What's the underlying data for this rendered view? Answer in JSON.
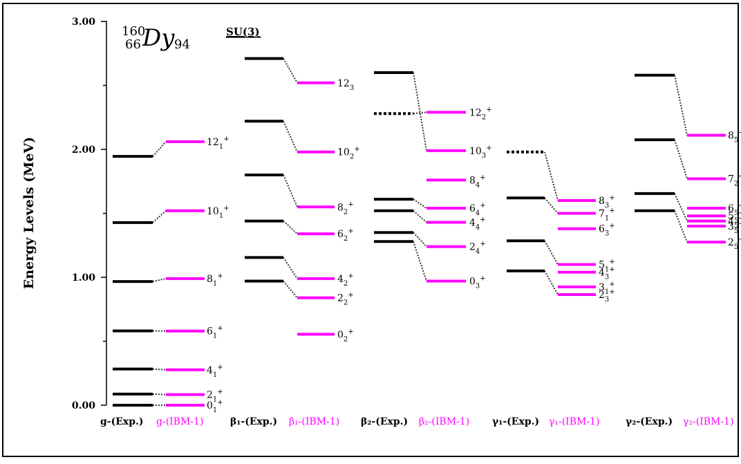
{
  "chart_data": {
    "type": "level-scheme",
    "nucleus": {
      "mass": "160",
      "z": "66",
      "symbol": "Dy",
      "n": "94"
    },
    "model_label": "SU(3)",
    "ylabel": "Energy Levels (MeV)",
    "ylim": [
      0,
      3.0
    ],
    "y_ticks": [
      {
        "value": 0,
        "label": "0.00"
      },
      {
        "value": 1,
        "label": "1.00"
      },
      {
        "value": 2,
        "label": "2.00"
      },
      {
        "value": 3,
        "label": "3.00"
      }
    ],
    "y_minor_ticks": [
      0.5,
      1.5,
      2.5
    ],
    "colors": {
      "exp": "#000000",
      "ibm": "#ff00ff",
      "connector": "#333333"
    },
    "bands": [
      {
        "exp_label": "g-(Exp.)",
        "ibm_label": "g-(IBM-1)",
        "exp": [
          0.0,
          0.087,
          0.283,
          0.581,
          0.967,
          1.428,
          1.945
        ],
        "exp_dotted": [
          false,
          false,
          false,
          false,
          false,
          false,
          false
        ],
        "ibm": [
          0.0,
          0.083,
          0.277,
          0.58,
          0.99,
          1.52,
          2.06
        ],
        "ibm_labels": [
          {
            "base": "0",
            "sub": "1",
            "sup": "+"
          },
          {
            "base": "2",
            "sub": "1",
            "sup": "+"
          },
          {
            "base": "4",
            "sub": "1",
            "sup": "+"
          },
          {
            "base": "6",
            "sub": "1",
            "sup": "+"
          },
          {
            "base": "8",
            "sub": "1",
            "sup": "+"
          },
          {
            "base": "10",
            "sub": "1",
            "sup": "+"
          },
          {
            "base": "12",
            "sub": "1",
            "sup": "+"
          }
        ],
        "links": [
          [
            0,
            0
          ],
          [
            1,
            1
          ],
          [
            2,
            2
          ],
          [
            3,
            3
          ],
          [
            4,
            4
          ],
          [
            5,
            5
          ],
          [
            6,
            6
          ]
        ]
      },
      {
        "exp_label": "β₁-(Exp.)",
        "ibm_label": "β₁-(IBM-1)",
        "exp": [
          0.97,
          1.155,
          1.44,
          1.8,
          2.22,
          2.71
        ],
        "exp_dotted": [
          false,
          false,
          false,
          false,
          false,
          false
        ],
        "ibm": [
          0.555,
          0.84,
          0.99,
          1.34,
          1.55,
          1.98,
          2.52
        ],
        "ibm_labels": [
          {
            "base": "0",
            "sub": "2",
            "sup": "+"
          },
          {
            "base": "2",
            "sub": "2",
            "sup": "+"
          },
          {
            "base": "4",
            "sub": "2",
            "sup": "+"
          },
          {
            "base": "6",
            "sub": "2",
            "sup": "+"
          },
          {
            "base": "8",
            "sub": "2",
            "sup": "+"
          },
          {
            "base": "10",
            "sub": "2",
            "sup": "+"
          },
          {
            "base": "12",
            "sub": "3",
            "sup": ""
          }
        ],
        "links": [
          [
            0,
            1
          ],
          [
            1,
            2
          ],
          [
            2,
            3
          ],
          [
            3,
            4
          ],
          [
            4,
            5
          ],
          [
            5,
            6
          ]
        ]
      },
      {
        "exp_label": "β₂-(Exp.)",
        "ibm_label": "β₂-(IBM-1)",
        "exp": [
          1.28,
          1.35,
          1.52,
          1.61,
          2.28,
          2.6
        ],
        "exp_dotted": [
          false,
          false,
          false,
          false,
          true,
          false
        ],
        "ibm": [
          0.97,
          1.24,
          1.43,
          1.54,
          1.76,
          1.99,
          2.29
        ],
        "ibm_labels": [
          {
            "base": "0",
            "sub": "3",
            "sup": "+"
          },
          {
            "base": "2",
            "sub": "4",
            "sup": "+"
          },
          {
            "base": "4",
            "sub": "4",
            "sup": "+"
          },
          {
            "base": "6",
            "sub": "4",
            "sup": "+"
          },
          {
            "base": "8",
            "sub": "4",
            "sup": "+"
          },
          {
            "base": "10",
            "sub": "3",
            "sup": "+"
          },
          {
            "base": "12",
            "sub": "2",
            "sup": "+"
          }
        ],
        "links": [
          [
            0,
            0
          ],
          [
            1,
            1
          ],
          [
            2,
            2
          ],
          [
            3,
            3
          ],
          [
            4,
            6
          ],
          [
            5,
            5
          ]
        ]
      },
      {
        "exp_label": "γ₁-(Exp.)",
        "ibm_label": "γ₁-(IBM-1)",
        "exp": [
          1.05,
          1.285,
          1.62,
          1.98
        ],
        "exp_dotted": [
          false,
          false,
          false,
          true
        ],
        "ibm": [
          0.865,
          0.925,
          1.04,
          1.1,
          1.38,
          1.5,
          1.6
        ],
        "ibm_labels": [
          {
            "base": "2",
            "sub": "3",
            "sup": "+"
          },
          {
            "base": "3",
            "sub": "1",
            "sup": "+"
          },
          {
            "base": "4",
            "sub": "3",
            "sup": "+"
          },
          {
            "base": "5",
            "sub": "1",
            "sup": "+"
          },
          {
            "base": "6",
            "sub": "3",
            "sup": "+"
          },
          {
            "base": "7",
            "sub": "1",
            "sup": "+"
          },
          {
            "base": "8",
            "sub": "3",
            "sup": "+"
          }
        ],
        "links": [
          [
            0,
            0
          ],
          [
            1,
            3
          ],
          [
            2,
            5
          ],
          [
            3,
            6
          ]
        ]
      },
      {
        "exp_label": "γ₂-(Exp.)",
        "ibm_label": "γ₂-(IBM-1)",
        "exp": [
          1.52,
          1.655,
          2.075,
          2.58
        ],
        "exp_dotted": [
          false,
          false,
          false,
          false
        ],
        "ibm": [
          1.275,
          1.4,
          1.44,
          1.48,
          1.54,
          1.77,
          2.11
        ],
        "ibm_labels": [
          {
            "base": "2",
            "sub": "5",
            "sup": "+"
          },
          {
            "base": "3",
            "sub": "5",
            "sup": "+"
          },
          {
            "base": "4",
            "sub": "5",
            "sup": "+"
          },
          {
            "base": "5",
            "sub": "5",
            "sup": "+"
          },
          {
            "base": "6",
            "sub": "5",
            "sup": "+"
          },
          {
            "base": "7",
            "sub": "2",
            "sup": "+"
          },
          {
            "base": "8",
            "sub": "5",
            "sup": "+"
          }
        ],
        "links": [
          [
            0,
            0
          ],
          [
            1,
            2
          ],
          [
            2,
            5
          ],
          [
            3,
            6
          ]
        ]
      }
    ]
  }
}
